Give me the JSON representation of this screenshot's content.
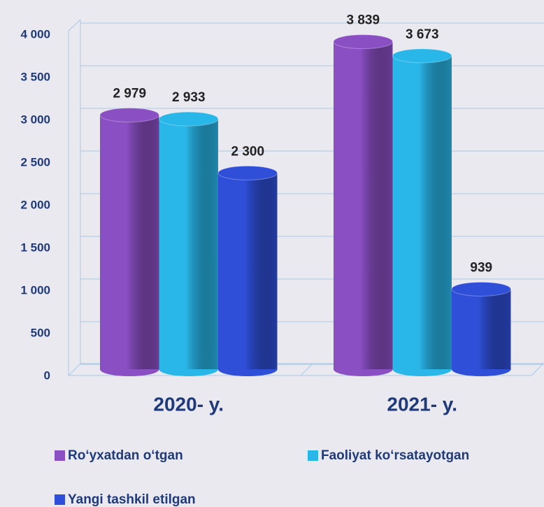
{
  "chart_data": {
    "type": "bar",
    "categories": [
      "2020- y.",
      "2021- y."
    ],
    "series": [
      {
        "name": "Ro‘yxatdan o‘tgan",
        "color": "#8b4fc4",
        "values": [
          2979,
          3839
        ],
        "value_labels": [
          "2 979",
          "3 839"
        ]
      },
      {
        "name": "Faoliyat ko‘rsatayotgan",
        "color": "#29b6e8",
        "values": [
          2933,
          3673
        ],
        "value_labels": [
          "2 933",
          "3 673"
        ]
      },
      {
        "name": "Yangi tashkil etilgan",
        "color": "#2f4fd8",
        "values": [
          2300,
          939
        ],
        "value_labels": [
          "2 300",
          "939"
        ]
      }
    ],
    "ylim": [
      0,
      4000
    ],
    "yticks": [
      0,
      500,
      {
        "value": 1000,
        "label": "1 000"
      },
      {
        "value": 1500,
        "label": "1 500"
      },
      {
        "value": 2000,
        "label": "2 000"
      },
      {
        "value": 2500,
        "label": "2 500"
      },
      {
        "value": 3000,
        "label": "3 000"
      },
      {
        "value": 3500,
        "label": "3 500"
      },
      {
        "value": 4000,
        "label": "4 000"
      }
    ],
    "grid": true
  }
}
